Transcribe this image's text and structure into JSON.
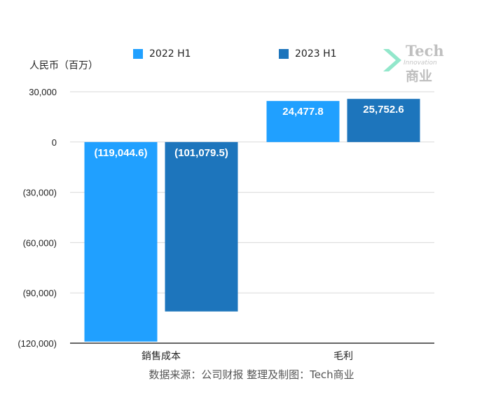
{
  "unit_label": "人民币（百万）",
  "source": "数据来源：公司财报 整理及制图：Tech商业",
  "logo": {
    "brand": "Tech",
    "sub": "Innovation",
    "cn": "商业"
  },
  "colors": {
    "series_2022": "#20a0ff",
    "series_2023": "#1d75bc",
    "label_on_bar": "#ffffff",
    "gridline": "#d9d9d9",
    "axis": "#333333",
    "logo_gray": "#b5b5b5",
    "logo_chevron": "#7fe3c2"
  },
  "chart_data": {
    "type": "bar",
    "title": "",
    "xlabel": "",
    "ylabel": "人民币（百万）",
    "categories": [
      "銷售成本",
      "毛利"
    ],
    "series": [
      {
        "name": "2022 H1",
        "values": [
          -119044.6,
          24477.8
        ],
        "labels": [
          "(119,044.6)",
          "24,477.8"
        ]
      },
      {
        "name": "2023 H1",
        "values": [
          -101079.5,
          25752.6
        ],
        "labels": [
          "(101,079.5)",
          "25,752.6"
        ]
      }
    ],
    "ylim": [
      -120000,
      30000
    ],
    "yticks": [
      30000,
      0,
      -30000,
      -60000,
      -90000,
      -120000
    ],
    "ytick_labels": [
      "30,000",
      "0",
      "(30,000)",
      "(60,000)",
      "(90,000)",
      "(120,000)"
    ],
    "grid": true,
    "legend": "top"
  }
}
